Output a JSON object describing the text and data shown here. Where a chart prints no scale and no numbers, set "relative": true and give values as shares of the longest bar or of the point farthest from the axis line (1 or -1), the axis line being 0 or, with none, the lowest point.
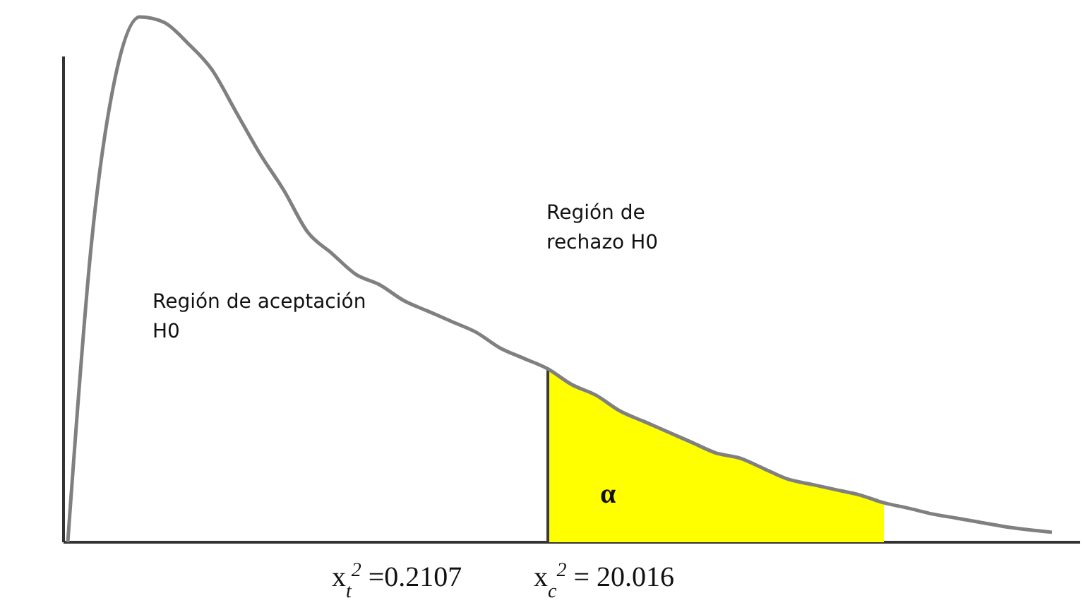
{
  "chart_data": {
    "type": "line",
    "relative": true,
    "categories": [
      null,
      null,
      null,
      null,
      null,
      null,
      null,
      null,
      null,
      null,
      null,
      null,
      null,
      null,
      null,
      null,
      null,
      null,
      null,
      null,
      null,
      null,
      null,
      null,
      null,
      null,
      null,
      null,
      null,
      null,
      null,
      null,
      null,
      null,
      null,
      null,
      null,
      null,
      null,
      null,
      null,
      null
    ],
    "series": [
      {
        "color": "#808080",
        "values": [
          0,
          0.575,
          0.89,
          1,
          0.99,
          0.95,
          0.9,
          0.82,
          0.74,
          0.67,
          0.59,
          0.55,
          0.51,
          0.49,
          0.46,
          0.44,
          0.42,
          0.4,
          0.37,
          0.35,
          0.33,
          0.3,
          0.28,
          0.25,
          0.23,
          0.21,
          0.19,
          0.17,
          0.16,
          0.14,
          0.12,
          0.11,
          0.1,
          0.09,
          0.075,
          0.065,
          0.054,
          0.046,
          0.038,
          0.03,
          0.024,
          0.019
        ]
      },
      {
        "type": "area",
        "color": "#ffff00",
        "values": [
          null,
          null,
          null,
          null,
          null,
          null,
          null,
          null,
          null,
          null,
          null,
          null,
          null,
          null,
          null,
          null,
          null,
          null,
          null,
          null,
          0.33,
          0.3,
          0.28,
          0.25,
          0.23,
          0.21,
          0.19,
          0.17,
          0.16,
          0.14,
          0.12,
          0.11,
          0.1,
          0.09,
          0.075,
          null,
          null,
          null,
          null,
          null,
          null,
          null
        ]
      }
    ],
    "annotations": [
      "Región de aceptación H0",
      "Región de rechazo H0",
      "α",
      "x$_{t}$$^{2}$ =0.2107",
      "x$_{c}$$^{2}$ =  20.016"
    ]
  }
}
